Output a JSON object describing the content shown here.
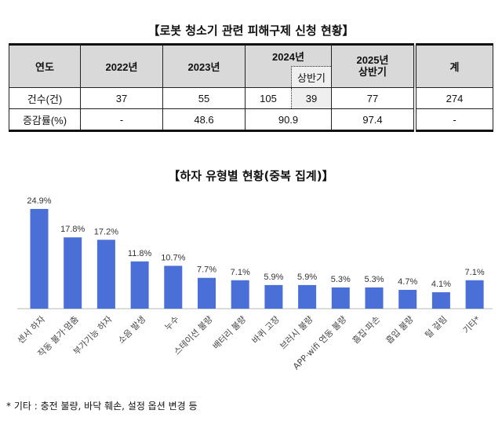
{
  "table_title": "【로봇 청소기 관련 피해구제 신청 현황】",
  "table": {
    "headers": {
      "year": "연도",
      "y2022": "2022년",
      "y2023": "2023년",
      "y2024": "2024년",
      "y2024_half": "상반기",
      "y2025": "2025년",
      "y2025_half": "상반기",
      "total": "계"
    },
    "rows": [
      {
        "label": "건수(건)",
        "y2022": "37",
        "y2023": "55",
        "y2024": "105",
        "y2024_half": "39",
        "y2025": "77",
        "total": "274"
      },
      {
        "label": "증감률(%)",
        "y2022": "-",
        "y2023": "48.6",
        "y2024": "90.9",
        "y2025": "97.4",
        "total": "-"
      }
    ]
  },
  "chart_data": {
    "type": "bar",
    "title": "【하자 유형별 현황(중복 집계)】",
    "categories": [
      "센서 하자",
      "작동 불가·멈춤",
      "부가기능 하자",
      "소음 발생",
      "누수",
      "스테이션 불량",
      "배터리 불량",
      "바퀴 고장",
      "브러시 불량",
      "APP·wifi 연동 불량",
      "흠집·파손",
      "흡입 불량",
      "털 걸림",
      "기타*"
    ],
    "values": [
      24.9,
      17.8,
      17.2,
      11.8,
      10.7,
      7.7,
      7.1,
      5.9,
      5.9,
      5.3,
      5.3,
      4.7,
      4.1,
      7.1
    ],
    "data_labels": [
      "24.9%",
      "17.8%",
      "17.2%",
      "11.8%",
      "10.7%",
      "7.7%",
      "7.1%",
      "5.9%",
      "5.9%",
      "5.3%",
      "5.3%",
      "4.7%",
      "4.1%",
      "7.1%"
    ],
    "bar_color": "#4a6fd6",
    "grid": false
  },
  "footnote": "* 기타 : 충전 불량, 바닥 훼손, 설정 옵션 변경 등"
}
